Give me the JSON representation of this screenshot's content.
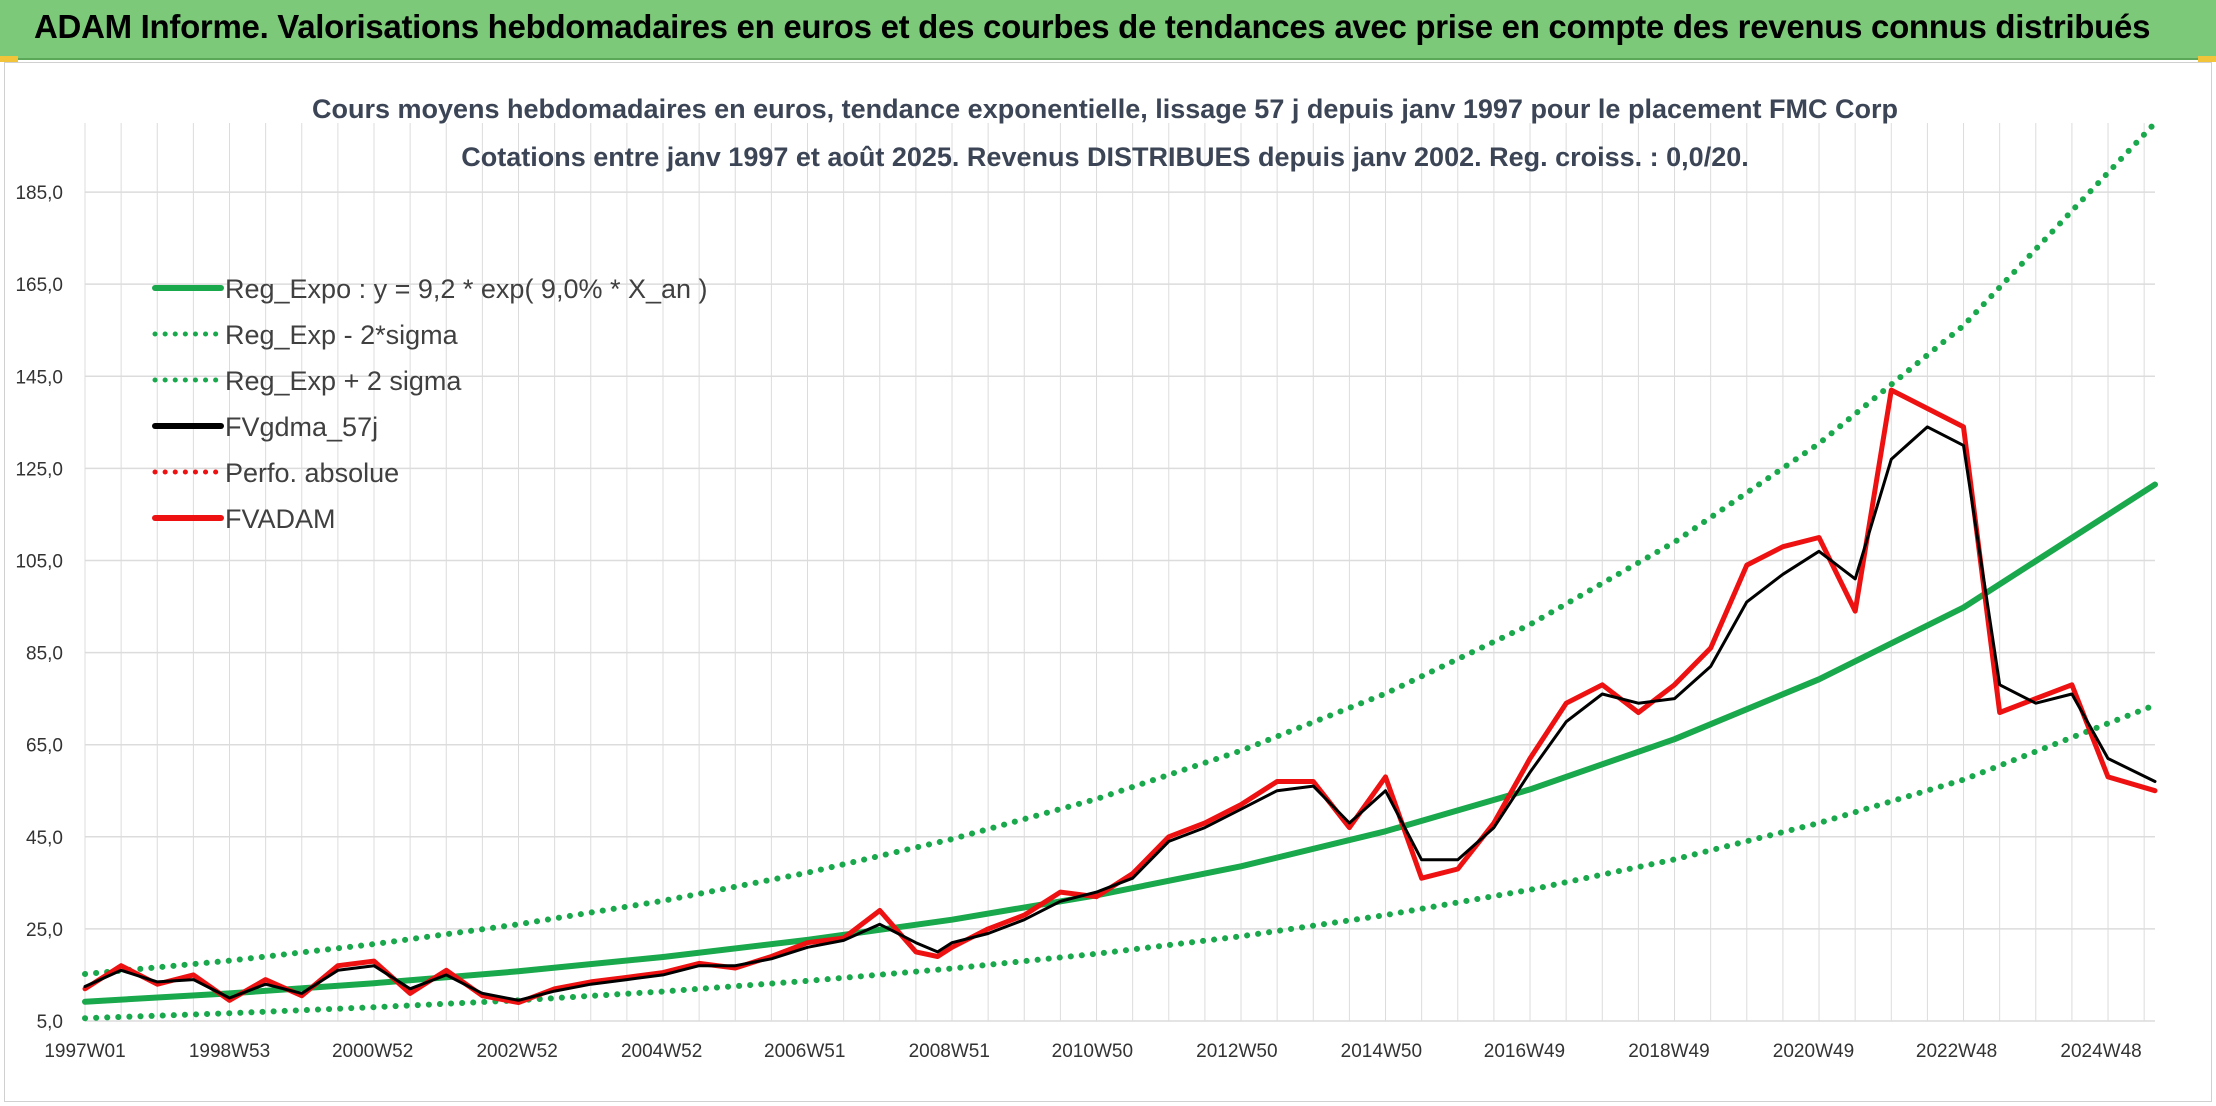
{
  "header": {
    "title": "ADAM Informe. Valorisations hebdomadaires en euros et des courbes de tendances avec prise en compte des revenus connus distribués"
  },
  "colors": {
    "header_bg": "#7dc97a",
    "green": "#19a84c",
    "black": "#000000",
    "red": "#ee1111",
    "grid": "#dcdcdc"
  },
  "chart_data": {
    "type": "line",
    "title": "Cours moyens hebdomadaires en euros, tendance exponentielle, lissage 57 j depuis janv 1997 pour le placement FMC Corp",
    "subtitle": "Cotations entre janv 1997 et août 2025. Revenus DISTRIBUES depuis janv 2002. Reg. croiss. : 0,0/20.",
    "xlabel": "",
    "ylabel": "",
    "ylim": [
      5,
      200
    ],
    "xlim": [
      1997.0,
      2025.65
    ],
    "y_ticks": [
      "5,0",
      "25,0",
      "45,0",
      "65,0",
      "85,0",
      "105,0",
      "125,0",
      "145,0",
      "165,0",
      "185,0"
    ],
    "x_ticks": [
      "1997W01",
      "1998W53",
      "2000W52",
      "2002W52",
      "2004W52",
      "2006W51",
      "2008W51",
      "2010W50",
      "2012W50",
      "2014W50",
      "2016W49",
      "2018W49",
      "2020W49",
      "2022W48",
      "2024W48"
    ],
    "grid": true,
    "legend_position": "top-left",
    "legend": [
      {
        "label": "Reg_Expo : y = 9,2 * exp( 9,0% *  X_an )",
        "color": "#19a84c",
        "style": "solid"
      },
      {
        "label": "Reg_Exp - 2*sigma",
        "color": "#19a84c",
        "style": "dotted"
      },
      {
        "label": "Reg_Exp + 2 sigma",
        "color": "#19a84c",
        "style": "dotted"
      },
      {
        "label": "FVgdma_57j",
        "color": "#000000",
        "style": "solid"
      },
      {
        "label": "Perfo. absolue",
        "color": "#ee1111",
        "style": "dotted"
      },
      {
        "label": "FVADAM",
        "color": "#ee1111",
        "style": "solid"
      }
    ],
    "series": [
      {
        "name": "Reg_Expo : y = 9,2 * exp( 9,0% *  X_an )",
        "x": [
          1997.0,
          1999.0,
          2001.0,
          2003.0,
          2005.0,
          2007.0,
          2009.0,
          2011.0,
          2013.0,
          2015.0,
          2017.0,
          2019.0,
          2021.0,
          2023.0,
          2025.65
        ],
        "values": [
          9.2,
          11.0,
          13.2,
          15.8,
          18.9,
          22.6,
          27.0,
          32.3,
          38.6,
          46.2,
          55.3,
          66.2,
          79.2,
          94.8,
          121.5
        ]
      },
      {
        "name": "Reg_Exp - 2*sigma",
        "x": [
          1997.0,
          1999.0,
          2001.0,
          2003.0,
          2005.0,
          2007.0,
          2009.0,
          2011.0,
          2013.0,
          2015.0,
          2017.0,
          2019.0,
          2021.0,
          2023.0,
          2025.65
        ],
        "values": [
          5.6,
          6.7,
          8.0,
          9.5,
          11.4,
          13.7,
          16.4,
          19.6,
          23.4,
          28.0,
          33.5,
          40.1,
          48.0,
          57.4,
          73.6
        ]
      },
      {
        "name": "Reg_Exp + 2 sigma",
        "x": [
          1997.0,
          1999.0,
          2001.0,
          2003.0,
          2005.0,
          2007.0,
          2009.0,
          2011.0,
          2013.0,
          2015.0,
          2017.0,
          2019.0,
          2021.0,
          2023.0,
          2025.65
        ],
        "values": [
          15.2,
          18.1,
          21.7,
          26.0,
          31.1,
          37.2,
          44.5,
          53.2,
          63.7,
          76.1,
          91.1,
          109.0,
          130.4,
          156.0,
          200.0
        ]
      },
      {
        "name": "FVgdma_57j",
        "x": [
          1997.0,
          1997.5,
          1998.0,
          1998.5,
          1999.0,
          1999.5,
          2000.0,
          2000.5,
          2001.0,
          2001.5,
          2002.0,
          2002.5,
          2003.0,
          2003.5,
          2004.0,
          2004.5,
          2005.0,
          2005.5,
          2006.0,
          2006.5,
          2007.0,
          2007.5,
          2008.0,
          2008.5,
          2008.8,
          2009.0,
          2009.5,
          2010.0,
          2010.5,
          2011.0,
          2011.5,
          2012.0,
          2012.5,
          2013.0,
          2013.5,
          2014.0,
          2014.5,
          2015.0,
          2015.5,
          2016.0,
          2016.5,
          2017.0,
          2017.5,
          2018.0,
          2018.5,
          2019.0,
          2019.5,
          2020.0,
          2020.5,
          2021.0,
          2021.5,
          2022.0,
          2022.5,
          2023.0,
          2023.5,
          2024.0,
          2024.5,
          2025.0,
          2025.65
        ],
        "values": [
          12.5,
          16.0,
          13.5,
          14.0,
          10.0,
          13.0,
          11.0,
          16.0,
          17.0,
          12.0,
          15.0,
          11.0,
          9.5,
          11.5,
          13.0,
          14.0,
          15.0,
          17.0,
          17.0,
          18.5,
          21.0,
          22.5,
          26.0,
          22.0,
          20.0,
          22.0,
          24.0,
          27.0,
          31.0,
          33.0,
          36.0,
          44.0,
          47.0,
          51.0,
          55.0,
          56.0,
          48.0,
          55.0,
          40.0,
          40.0,
          47.0,
          59.0,
          70.0,
          76.0,
          74.0,
          75.0,
          82.0,
          96.0,
          102.0,
          107.0,
          101.0,
          127.0,
          134.0,
          130.0,
          78.0,
          74.0,
          76.0,
          62.0,
          57.0
        ]
      },
      {
        "name": "FVADAM",
        "x": [
          1997.0,
          1997.5,
          1998.0,
          1998.5,
          1999.0,
          1999.5,
          2000.0,
          2000.5,
          2001.0,
          2001.5,
          2002.0,
          2002.5,
          2003.0,
          2003.5,
          2004.0,
          2004.5,
          2005.0,
          2005.5,
          2006.0,
          2006.5,
          2007.0,
          2007.5,
          2008.0,
          2008.5,
          2008.8,
          2009.0,
          2009.5,
          2010.0,
          2010.5,
          2011.0,
          2011.5,
          2012.0,
          2012.5,
          2013.0,
          2013.5,
          2014.0,
          2014.5,
          2015.0,
          2015.5,
          2016.0,
          2016.5,
          2017.0,
          2017.5,
          2018.0,
          2018.5,
          2019.0,
          2019.5,
          2020.0,
          2020.5,
          2021.0,
          2021.5,
          2022.0,
          2022.5,
          2023.0,
          2023.5,
          2024.0,
          2024.5,
          2025.0,
          2025.65
        ],
        "values": [
          12.0,
          17.0,
          13.0,
          15.0,
          9.5,
          14.0,
          10.5,
          17.0,
          18.0,
          11.0,
          16.0,
          10.5,
          9.0,
          12.0,
          13.5,
          14.5,
          15.5,
          17.5,
          16.5,
          19.0,
          22.0,
          23.0,
          29.0,
          20.0,
          19.0,
          21.0,
          25.0,
          28.0,
          33.0,
          32.0,
          37.0,
          45.0,
          48.0,
          52.0,
          57.0,
          57.0,
          47.0,
          58.0,
          36.0,
          38.0,
          48.0,
          62.0,
          74.0,
          78.0,
          72.0,
          78.0,
          86.0,
          104.0,
          108.0,
          110.0,
          94.0,
          142.0,
          138.0,
          134.0,
          72.0,
          75.0,
          78.0,
          58.0,
          55.0
        ]
      }
    ]
  }
}
